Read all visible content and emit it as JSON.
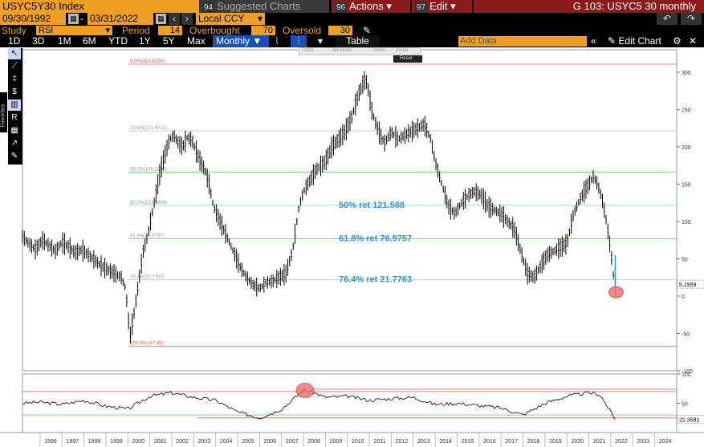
{
  "header": {
    "ticker": "USYC5Y30 Index",
    "suggested_num": "94",
    "suggested_label": "Suggested Charts",
    "actions_num": "96",
    "actions_label": "Actions",
    "edit_num": "97",
    "edit_label": "Edit",
    "title": "G 103: USYC5 30 monthly"
  },
  "range": {
    "start": "09/30/1992",
    "end": "03/31/2022",
    "currency": "Local CCY"
  },
  "study": {
    "label": "Study",
    "name": "RSI",
    "period_label": "Period",
    "period": "14",
    "overbought_label": "Overbought",
    "overbought": "70",
    "oversold_label": "Oversold",
    "oversold": "30"
  },
  "periods": [
    "1D",
    "3D",
    "1M",
    "6M",
    "YTD",
    "1Y",
    "5Y",
    "Max"
  ],
  "toolbar": {
    "frequency": "Monthly",
    "table_label": "Table",
    "add_data_placeholder": "Add Data",
    "edit_chart_label": "Edit Chart"
  },
  "mini_toolbar": {
    "items": [
      "Track",
      "Annotate",
      "News",
      "Zoom"
    ],
    "reset_label": "Reset"
  },
  "sidebar": {
    "favorites_label": "Favorites"
  },
  "colors": {
    "accent_orange": "#f0a020",
    "header_red": "#8b1a1a",
    "fib_red": "#e05050",
    "fib_green": "#50d050",
    "fib_cyan": "#60d8e8",
    "fib_gray": "#bbbbbb",
    "annotation_blue": "#3090e0",
    "highlight_circle": "#f07070"
  },
  "chart_data": {
    "type": "bar",
    "title": "",
    "xlabel": "",
    "ylabel": "",
    "x_ticks": [
      "1996",
      "1997",
      "1998",
      "1999",
      "2000",
      "2001",
      "2002",
      "2003",
      "2004",
      "2005",
      "2006",
      "2007",
      "2008",
      "2009",
      "2010",
      "2011",
      "2012",
      "2013",
      "2014",
      "2015",
      "2016",
      "2017",
      "2018",
      "2019",
      "2020",
      "2021",
      "2022",
      "2023",
      "2024"
    ],
    "x_range": [
      1995.2,
      2025.0
    ],
    "ylim": [
      -100,
      330
    ],
    "y_ticks": [
      -100,
      -50,
      0,
      50,
      100,
      150,
      200,
      250,
      300
    ],
    "last_value_label": "5.1959",
    "series": [
      {
        "name": "USYC5Y30 Index",
        "x": [
          1995.2,
          1995.5,
          1995.8,
          1996.1,
          1996.4,
          1996.7,
          1997.0,
          1997.3,
          1997.6,
          1997.9,
          1998.2,
          1998.5,
          1998.8,
          1999.1,
          1999.4,
          1999.7,
          1999.9,
          2000.1,
          2000.3,
          2000.5,
          2000.7,
          2000.9,
          2001.1,
          2001.3,
          2001.5,
          2001.7,
          2001.9,
          2002.1,
          2002.3,
          2002.5,
          2002.7,
          2002.9,
          2003.1,
          2003.3,
          2003.5,
          2003.7,
          2003.9,
          2004.2,
          2004.5,
          2004.8,
          2005.1,
          2005.4,
          2005.7,
          2006.0,
          2006.3,
          2006.6,
          2006.9,
          2007.2,
          2007.5,
          2007.8,
          2008.0,
          2008.2,
          2008.4,
          2008.6,
          2008.8,
          2009.0,
          2009.3,
          2009.6,
          2009.9,
          2010.2,
          2010.5,
          2010.8,
          2010.9,
          2011.1,
          2011.3,
          2011.5,
          2011.7,
          2012.0,
          2012.3,
          2012.6,
          2012.9,
          2013.2,
          2013.5,
          2013.8,
          2014.0,
          2014.3,
          2014.6,
          2014.9,
          2015.2,
          2015.5,
          2015.8,
          2016.1,
          2016.4,
          2016.7,
          2017.0,
          2017.3,
          2017.6,
          2017.9,
          2018.2,
          2018.5,
          2018.8,
          2019.1,
          2019.4,
          2019.7,
          2020.0,
          2020.3,
          2020.6,
          2020.9,
          2021.2,
          2021.4,
          2021.6,
          2021.8,
          2022.0,
          2022.2
        ],
        "values": [
          80,
          70,
          62,
          75,
          68,
          60,
          72,
          66,
          58,
          62,
          55,
          48,
          40,
          35,
          30,
          25,
          10,
          -55,
          -20,
          20,
          60,
          80,
          110,
          140,
          170,
          190,
          210,
          215,
          205,
          200,
          212,
          210,
          195,
          180,
          170,
          150,
          120,
          100,
          80,
          60,
          40,
          25,
          15,
          10,
          18,
          20,
          25,
          30,
          60,
          120,
          140,
          150,
          160,
          170,
          175,
          180,
          200,
          210,
          220,
          240,
          270,
          290,
          285,
          250,
          230,
          215,
          205,
          220,
          210,
          215,
          220,
          225,
          230,
          210,
          180,
          150,
          120,
          110,
          125,
          135,
          140,
          135,
          120,
          115,
          110,
          100,
          90,
          60,
          30,
          25,
          40,
          55,
          60,
          65,
          70,
          110,
          130,
          145,
          160,
          150,
          130,
          100,
          60,
          5.1959
        ]
      }
    ],
    "fibonacci": [
      {
        "label": "0.0%(310.6276)",
        "value": 310.6276,
        "color": "red"
      },
      {
        "label": "23.6%(221.4013)",
        "value": 221.4013,
        "color": "gray"
      },
      {
        "label": "38.2%(166.2002)",
        "value": 166.2002,
        "color": "green"
      },
      {
        "label": "50.0%(121.5884)",
        "value": 121.5884,
        "color": "cyan"
      },
      {
        "label": "61.8%(76.9757)",
        "value": 76.9757,
        "color": "green"
      },
      {
        "label": "76.4%(21.7763)",
        "value": 21.7763,
        "color": "gray"
      },
      {
        "label": "100.0%(-67.45)",
        "value": -67.45,
        "color": "red"
      }
    ],
    "annotations": [
      {
        "text": "50% ret 121.588",
        "value": 121.588
      },
      {
        "text": "61.8% ret 76.9757",
        "value": 76.9757
      },
      {
        "text": "76.4% ret 21.7763",
        "value": 21.7763
      }
    ],
    "rsi": {
      "ylim": [
        0,
        100
      ],
      "y_ticks": [
        50,
        100
      ],
      "overbought": 70,
      "oversold": 30,
      "last_value_label": "22.3581",
      "x": [
        1995.2,
        1996,
        1997,
        1998,
        1999,
        2000,
        2001,
        2002,
        2003,
        2004,
        2005,
        2006,
        2007,
        2008,
        2008.5,
        2009,
        2010,
        2011,
        2012,
        2013,
        2014,
        2015,
        2016,
        2017,
        2018,
        2019,
        2020,
        2021,
        2021.5,
        2022,
        2022.2
      ],
      "values": [
        50,
        52,
        48,
        55,
        45,
        40,
        62,
        68,
        60,
        55,
        35,
        25,
        40,
        72,
        68,
        60,
        62,
        55,
        58,
        60,
        48,
        50,
        46,
        42,
        30,
        50,
        62,
        68,
        65,
        35,
        22.3581
      ]
    }
  }
}
